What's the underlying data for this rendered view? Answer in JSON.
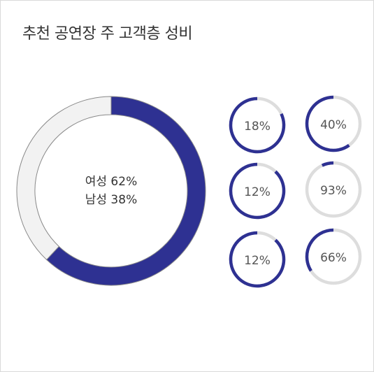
{
  "title": "추천 공연장 주 고객층 성비",
  "colors": {
    "primary": "#2e3192",
    "secondary": "#f2f2f2",
    "outline": "#888888",
    "track": "#dddddd"
  },
  "chart_data": [
    {
      "type": "pie",
      "title": "",
      "slices": [
        {
          "label": "여성",
          "value": 62,
          "text": "여성 62%"
        },
        {
          "label": "남성",
          "value": 38,
          "text": "남성 38%"
        }
      ]
    },
    {
      "type": "pie",
      "items": [
        {
          "value": 18,
          "label": "18%"
        },
        {
          "value": 40,
          "label": "40%"
        },
        {
          "value": 12,
          "label": "12%"
        },
        {
          "value": 93,
          "label": "93%"
        },
        {
          "value": 12,
          "label": "12%"
        },
        {
          "value": 66,
          "label": "66%"
        }
      ]
    }
  ]
}
